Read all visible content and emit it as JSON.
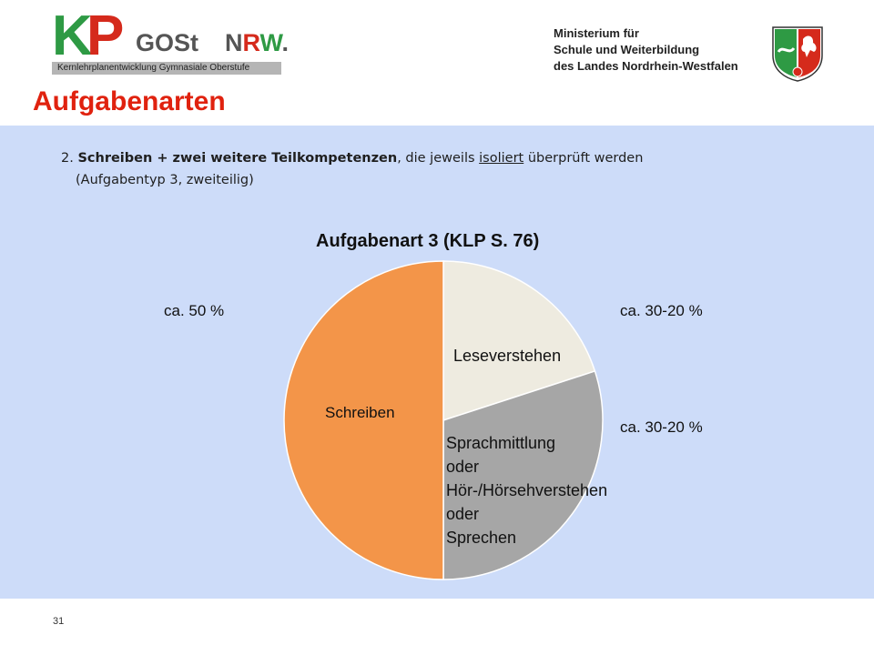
{
  "header": {
    "logo": {
      "k": "K",
      "p": "P",
      "gost": "GOSt",
      "nrw_n": "N",
      "nrw_r": "R",
      "nrw_w": "W",
      "dot": ".",
      "subtitle": "Kernlehrplanentwicklung Gymnasiale Oberstufe",
      "colors": {
        "green": "#2e9a44",
        "red": "#d52a1c",
        "grey": "#555555"
      }
    },
    "ministry": {
      "line1": "Ministerium für",
      "line2": "Schule und Weiterbildung",
      "line3": "des Landes Nordrhein-Westfalen"
    },
    "crest_icon": "nrw-crest-icon"
  },
  "slide": {
    "title": "Aufgabenarten",
    "title_color": "#e0220f",
    "background": "#cddcf9",
    "task": {
      "number": "2.",
      "bold": "Schreiben + zwei weitere Teilkompetenzen",
      "mid": ", die jeweils ",
      "underlined": "isoliert",
      "end": " überprüft werden",
      "line2": "(Aufgabentyp 3, zweiteilig)"
    },
    "page_number": "31"
  },
  "chart_data": {
    "type": "pie",
    "title": "Aufgabenart 3 (KLP S. 76)",
    "slices": [
      {
        "label": "Schreiben",
        "value": 50,
        "annotation": "ca. 50 %",
        "color": "#f39549"
      },
      {
        "label": "Leseverstehen",
        "value": 20,
        "annotation": "ca. 30-20 %",
        "color": "#eeebe0"
      },
      {
        "label_lines": [
          "Sprachmittlung",
          "oder",
          "Hör-/Hörsehverstehen",
          "oder",
          "Sprechen"
        ],
        "value": 30,
        "annotation": "ca. 30-20 %",
        "color": "#a6a6a6"
      }
    ]
  }
}
